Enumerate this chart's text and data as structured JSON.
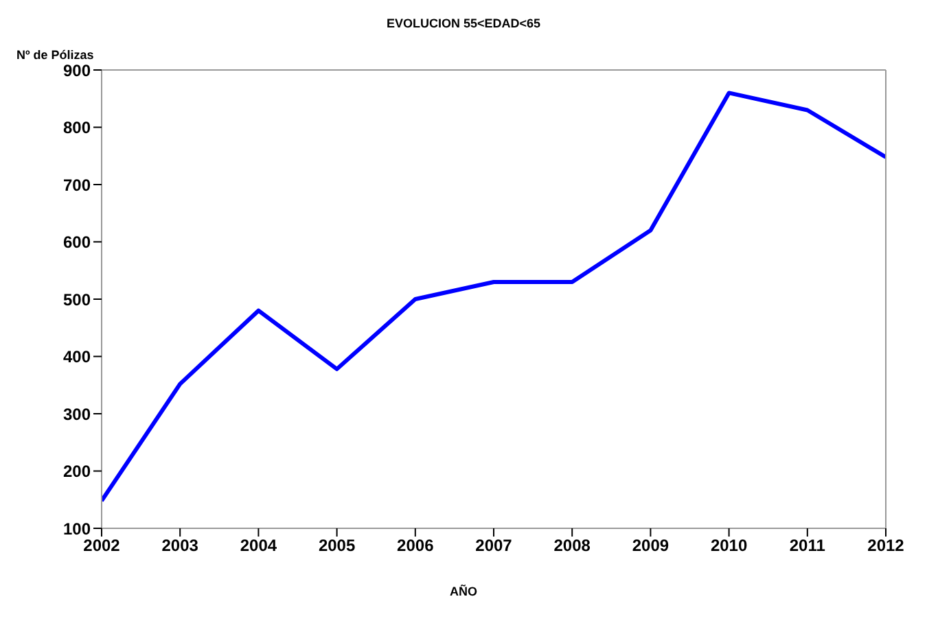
{
  "chart_data": {
    "type": "line",
    "title": "EVOLUCION 55<EDAD<65",
    "xlabel": "AÑO",
    "ylabel": "Nº de Pólizas",
    "x": [
      2002,
      2003,
      2004,
      2005,
      2006,
      2007,
      2008,
      2009,
      2010,
      2011,
      2012
    ],
    "series": [
      {
        "color": "#0000ff",
        "values": [
          148,
          352,
          480,
          378,
          500,
          530,
          530,
          620,
          860,
          830,
          748
        ]
      }
    ],
    "xlim": [
      2002,
      2012
    ],
    "xticks": [
      2002,
      2003,
      2004,
      2005,
      2006,
      2007,
      2008,
      2009,
      2010,
      2011,
      2012
    ],
    "ylim": [
      100,
      900
    ],
    "yticks": [
      100,
      200,
      300,
      400,
      500,
      600,
      700,
      800,
      900
    ],
    "grid": false,
    "legend": false,
    "marker": "none",
    "line_style": "solid"
  }
}
